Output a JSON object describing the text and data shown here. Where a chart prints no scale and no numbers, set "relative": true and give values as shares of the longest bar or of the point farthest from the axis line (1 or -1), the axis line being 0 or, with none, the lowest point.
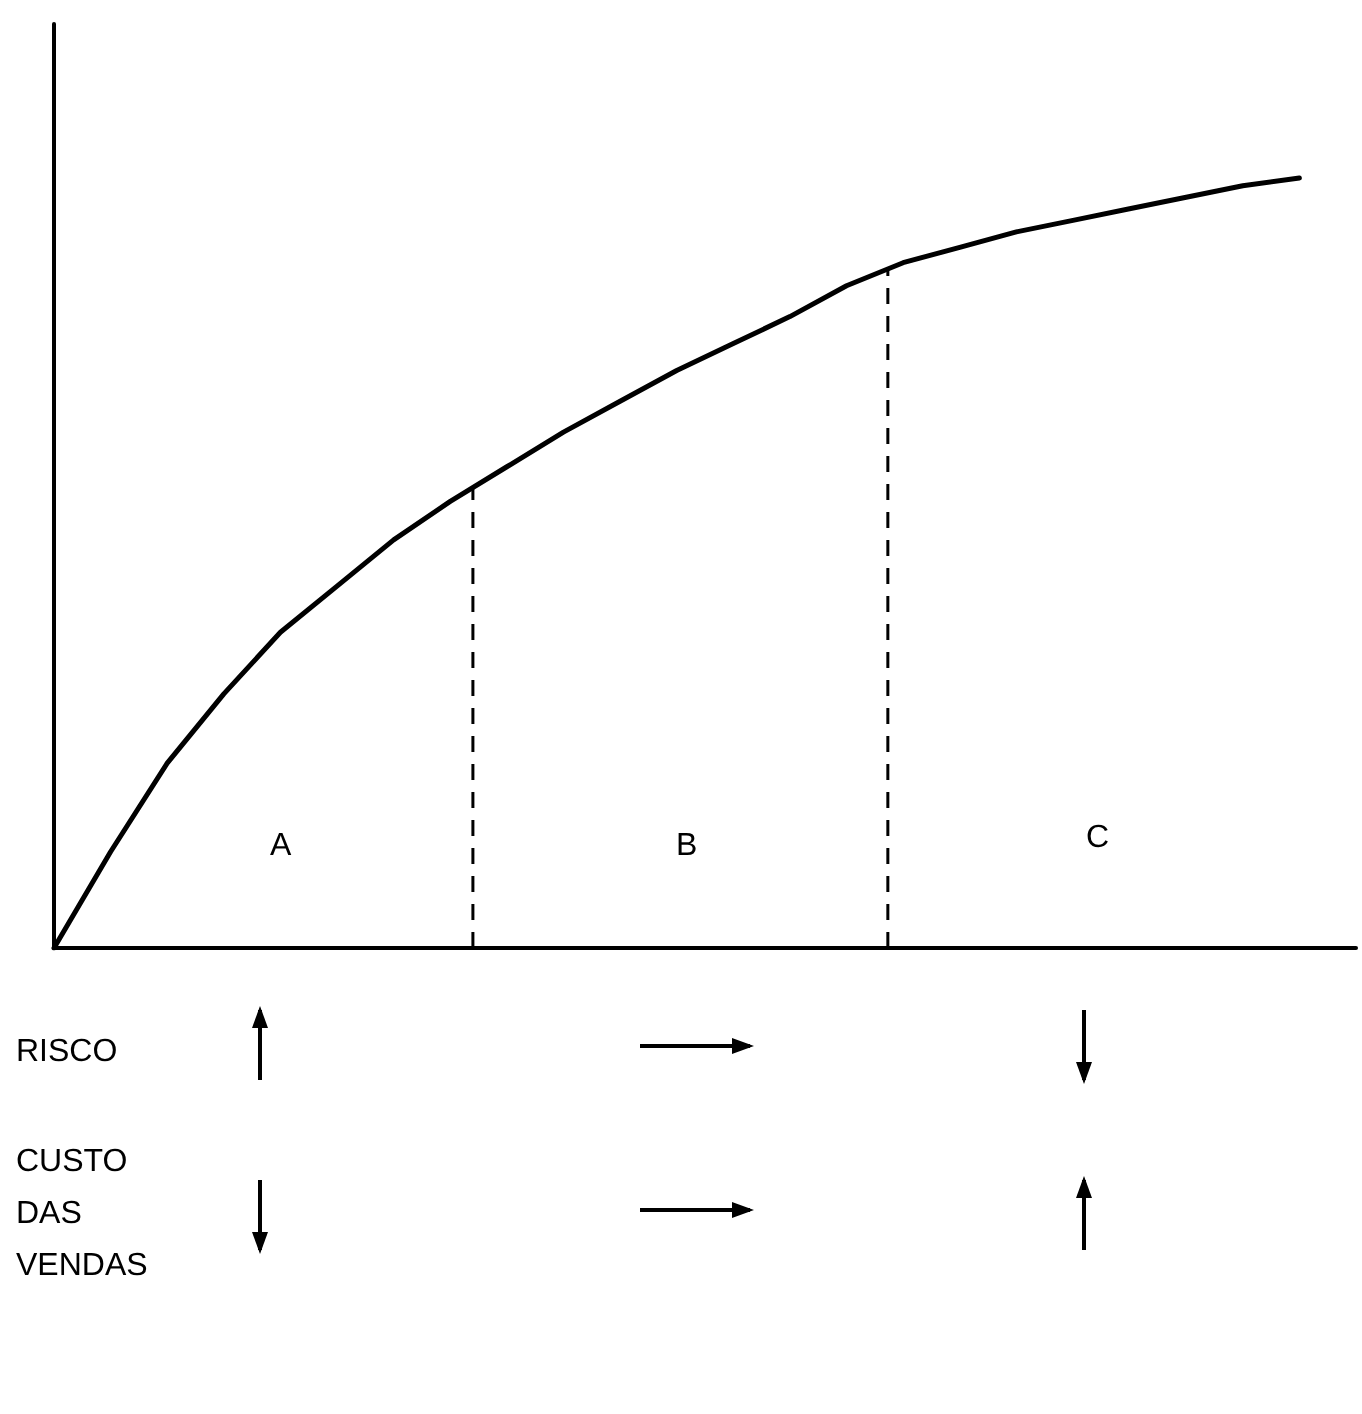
{
  "chart_data": {
    "type": "line",
    "relative": true,
    "marker": "none",
    "line_style": "solid",
    "categories": [
      null,
      null,
      null,
      null,
      null,
      null,
      null,
      null,
      null,
      null,
      null,
      null,
      null,
      null,
      null,
      null,
      null,
      null,
      null,
      null,
      null,
      null,
      null,
      null
    ],
    "series": [
      {
        "color": "#000000",
        "values": [
          0,
          0.125,
          0.24,
          0.33,
          0.41,
          0.47,
          0.53,
          0.58,
          0.625,
          0.67,
          0.71,
          0.75,
          0.785,
          0.82,
          0.86,
          0.89,
          0.91,
          0.93,
          0.945,
          0.96,
          0.975,
          0.99,
          1,
          null
        ]
      }
    ],
    "annotations": [
      "A",
      "B",
      "C",
      "RISCO",
      "CUSTO DAS VENDAS"
    ]
  }
}
